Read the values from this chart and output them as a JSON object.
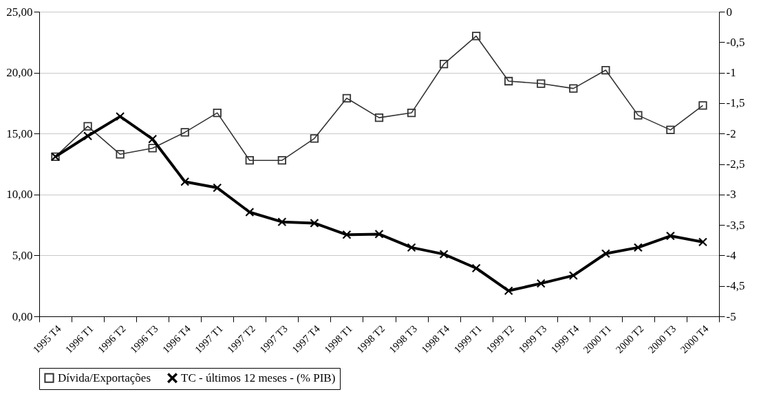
{
  "chart_data": {
    "type": "line",
    "categories": [
      "1995 T4",
      "1996 T1",
      "1996 T2",
      "1996 T3",
      "1996 T4",
      "1997 T1",
      "1997 T2",
      "1997 T3",
      "1997 T4",
      "1998 T1",
      "1998 T2",
      "1998 T3",
      "1998 T4",
      "1999 T1",
      "1999 T2",
      "1999 T3",
      "1999 T4",
      "2000 T1",
      "2000 T2",
      "2000 T3",
      "2000 T4"
    ],
    "series": [
      {
        "name": "Dívida/Exportações",
        "color": "#333333",
        "marker": "square",
        "values": [
          13.1,
          15.6,
          13.3,
          13.8,
          15.1,
          16.7,
          12.8,
          12.8,
          14.6,
          17.9,
          16.3,
          16.7,
          20.7,
          23.0,
          19.3,
          19.1,
          18.7,
          20.2,
          16.5,
          15.3,
          17.3
        ]
      },
      {
        "name": "TC - últimos 12 meses - (% PIB)",
        "color": "#000000",
        "marker": "cross",
        "axis": "y2",
        "values": [
          -2.38,
          -2.04,
          -1.72,
          -2.09,
          -2.79,
          -2.89,
          -3.29,
          -3.45,
          -3.47,
          -3.66,
          -3.65,
          -3.87,
          -3.98,
          -4.21,
          -4.58,
          -4.46,
          -4.33,
          -3.97,
          -3.87,
          -3.68,
          -3.78
        ]
      }
    ],
    "ylim": [
      0,
      25
    ],
    "yticks": [
      {
        "value": 0,
        "label": "0,00"
      },
      {
        "value": 5,
        "label": "5,00"
      },
      {
        "value": 10,
        "label": "10,00"
      },
      {
        "value": 15,
        "label": "15,00"
      },
      {
        "value": 20,
        "label": "20,00"
      },
      {
        "value": 25,
        "label": "25,00"
      }
    ],
    "y2lim": [
      -5,
      0
    ],
    "y2ticks": [
      0,
      {
        "value": -0.5,
        "label": "-0,5"
      },
      -1,
      {
        "value": -1.5,
        "label": "-1,5"
      },
      -2,
      {
        "value": -2.5,
        "label": "-2,5"
      },
      -3,
      {
        "value": -3.5,
        "label": "-3,5"
      },
      -4,
      {
        "value": -4.5,
        "label": "-4,5"
      },
      -5
    ],
    "grid": "y",
    "legend": "bottom",
    "line_style": "solid"
  }
}
